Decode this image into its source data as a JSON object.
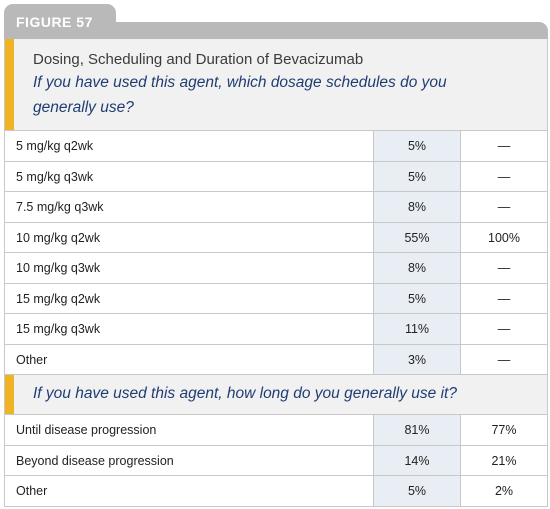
{
  "figure_label": "FIGURE 57",
  "header": {
    "title": "Dosing, Scheduling and Duration of Bevacizumab",
    "question_line1": "If you have used this agent, which dosage schedules do you",
    "question_line2": "generally use?"
  },
  "dosage_rows": [
    {
      "label": "5 mg/kg q2wk",
      "col1": "5%",
      "col2": "—"
    },
    {
      "label": "5 mg/kg q3wk",
      "col1": "5%",
      "col2": "—"
    },
    {
      "label": "7.5 mg/kg q3wk",
      "col1": "8%",
      "col2": "—"
    },
    {
      "label": "10 mg/kg q2wk",
      "col1": "55%",
      "col2": "100%"
    },
    {
      "label": "10 mg/kg q3wk",
      "col1": "8%",
      "col2": "—"
    },
    {
      "label": "15 mg/kg q2wk",
      "col1": "5%",
      "col2": "—"
    },
    {
      "label": "15 mg/kg q3wk",
      "col1": "11%",
      "col2": "—"
    },
    {
      "label": "Other",
      "col1": "3%",
      "col2": "—"
    }
  ],
  "duration_question": "If you have used this agent, how long do you generally use it?",
  "duration_rows": [
    {
      "label": "Until disease progression",
      "col1": "81%",
      "col2": "77%"
    },
    {
      "label": "Beyond disease progression",
      "col1": "14%",
      "col2": "21%"
    },
    {
      "label": "Other",
      "col1": "5%",
      "col2": "2%"
    }
  ],
  "colors": {
    "accent": "#f0b323",
    "question_text": "#1f3d73",
    "highlight_column": "#e8eef3",
    "tab_gray": "#b9b9b9"
  }
}
